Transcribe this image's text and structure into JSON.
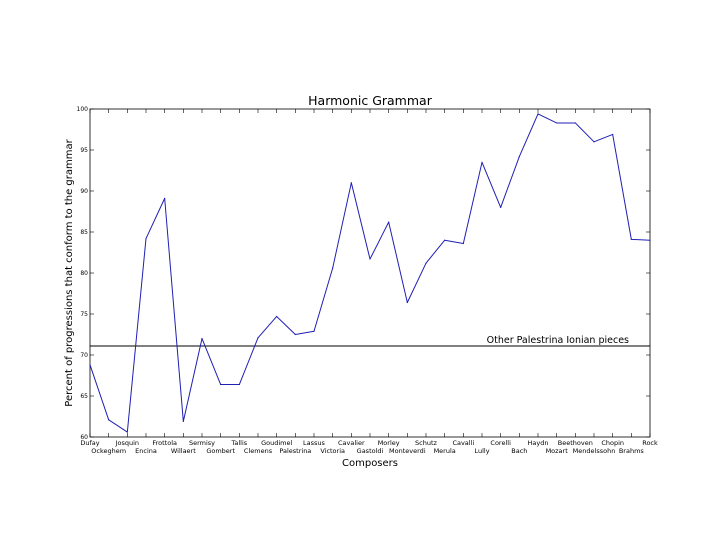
{
  "chart_data": {
    "type": "line",
    "title": "Harmonic Grammar",
    "xlabel": "Composers",
    "ylabel": "Percent of progressions that conform to the grammar",
    "ylim": [
      60,
      100
    ],
    "yticks": [
      "60",
      "65",
      "70",
      "75",
      "80",
      "85",
      "90",
      "95",
      "100"
    ],
    "grid": false,
    "categories": [
      "Dufay",
      "Ockeghem",
      "Josquin",
      "Encina",
      "Frottola",
      "Willaert",
      "Sermisy",
      "Gombert",
      "Tallis",
      "Clemens",
      "Goudimel",
      "Palestrina",
      "Lassus",
      "Victoria",
      "Cavalier",
      "Gastoldi",
      "Morley",
      "Monteverdi",
      "Schutz",
      "Merula",
      "Cavalli",
      "Lully",
      "Corelli",
      "Bach",
      "Haydn",
      "Mozart",
      "Beethoven",
      "Mendelssohn",
      "Chopin",
      "Brahms",
      "Rock"
    ],
    "series": [
      {
        "color": "#1f1fb4",
        "values": [
          68.8,
          62.1,
          60.6,
          84.2,
          89.1,
          61.9,
          72.0,
          66.4,
          66.4,
          72.1,
          74.7,
          72.5,
          72.9,
          80.6,
          91.0,
          81.7,
          86.2,
          76.4,
          81.2,
          84.0,
          83.6,
          93.5,
          88.0,
          94.2,
          99.4,
          98.3,
          98.3,
          96.0,
          96.9,
          84.1,
          84.0
        ]
      }
    ],
    "reference_line": {
      "value": 71.1,
      "label": "Other Palestrina Ionian pieces"
    }
  }
}
